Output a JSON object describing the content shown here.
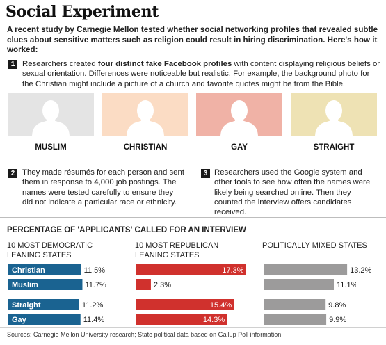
{
  "header": {
    "title": "Social Experiment",
    "intro": "A recent study by Carnegie Mellon tested whether social networking profiles that revealed subtle clues about sensitive matters such as religion could result in hiring discrimination. Here's how it worked:"
  },
  "steps": [
    {
      "num": "1",
      "pre": "Researchers created ",
      "bold": "four distinct fake Facebook profiles",
      "post": " with content displaying religious beliefs or sexual orientation. Differences were noticeable but realistic. For example, the background photo for the Christian might include a picture of a church and favorite quotes might be from the Bible."
    },
    {
      "num": "2",
      "text": "They made résumés for each person and sent them in response to 4,000 job postings. The names were tested carefully to ensure they did not indicate a particular race or ethnicity."
    },
    {
      "num": "3",
      "text": "Researchers used the Google system and other tools to see how often the names were likely being searched online. Then they counted the interview offers candidates received."
    }
  ],
  "profiles": [
    {
      "label": "MUSLIM",
      "bg": "#e4e4e4",
      "silhouette": "#ffffff"
    },
    {
      "label": "CHRISTIAN",
      "bg": "#fbdcc4",
      "silhouette": "#ffffff"
    },
    {
      "label": "GAY",
      "bg": "#f0b2a6",
      "silhouette": "#ffffff"
    },
    {
      "label": "STRAIGHT",
      "bg": "#eee2b4",
      "silhouette": "#ffffff"
    }
  ],
  "chart_data": {
    "type": "bar",
    "title": "PERCENTAGE OF 'APPLICANTS' CALLED FOR AN INTERVIEW",
    "categories": [
      "Christian",
      "Muslim",
      "Straight",
      "Gay"
    ],
    "series": [
      {
        "name": "10 MOST DEMOCRATIC LEANING STATES",
        "color": "#1a6391",
        "values": [
          11.5,
          11.7,
          11.2,
          11.4
        ],
        "labels": [
          "11.5%",
          "11.7%",
          "11.2%",
          "11.4%"
        ]
      },
      {
        "name": "10 MOST REPUBLICAN LEANING STATES",
        "color": "#d0312d",
        "values": [
          17.3,
          2.3,
          15.4,
          14.3
        ],
        "labels": [
          "17.3%",
          "2.3%",
          "15.4%",
          "14.3%"
        ]
      },
      {
        "name": "POLITICALLY MIXED STATES",
        "color": "#9c9b9b",
        "values": [
          13.2,
          11.1,
          9.8,
          9.9
        ],
        "labels": [
          "13.2%",
          "11.1%",
          "9.8%",
          "9.9%"
        ]
      }
    ],
    "source": "Sources: Carnegie Mellon University research; State political data based on Gallup Poll information"
  }
}
